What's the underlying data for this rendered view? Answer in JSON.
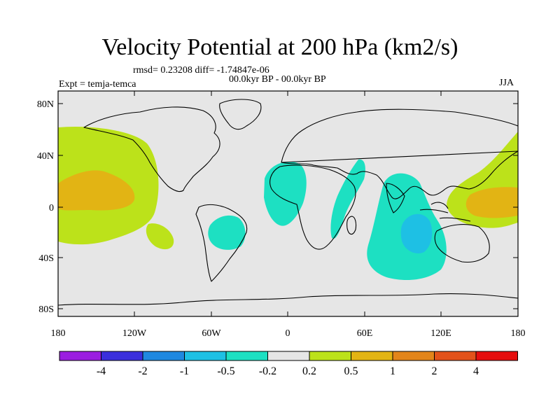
{
  "title": "Velocity Potential at 200 hPa (km2/s)",
  "stats": "rmsd= 0.23208 diff= -1.74847e-06",
  "period": "00.0kyr BP - 00.0kyr BP",
  "expt": "Expt = temja-temca",
  "season": "JJA",
  "axes": {
    "lat_ticks": [
      "80N",
      "40N",
      "0",
      "40S",
      "80S"
    ],
    "lon_ticks": [
      "180",
      "120W",
      "60W",
      "0",
      "60E",
      "120E",
      "180"
    ]
  },
  "colorbar": {
    "labels": [
      "-4",
      "-2",
      "-1",
      "-0.5",
      "-0.2",
      "0.2",
      "0.5",
      "1",
      "2",
      "4"
    ],
    "colors": [
      "#9b1de0",
      "#3a2fdc",
      "#1f88e0",
      "#1ec0e4",
      "#1de0c2",
      "#e6e6e6",
      "#bce21a",
      "#e2b414",
      "#e2851a",
      "#e2521a",
      "#e60e0e"
    ]
  },
  "map": {
    "background_color": "#e6e6e6",
    "coast_color": "#000000",
    "regions": [
      {
        "name": "central-pacific-positive",
        "level": "0.2 to 0.5",
        "color": "#bce21a"
      },
      {
        "name": "central-pacific-core",
        "level": "0.5 to 1",
        "color": "#e2b414"
      },
      {
        "name": "tropical-south-america-negative",
        "level": "-0.5 to -0.2",
        "color": "#1de0c2"
      },
      {
        "name": "west-africa-negative",
        "level": "-0.5 to -0.2",
        "color": "#1de0c2"
      },
      {
        "name": "east-africa-negative",
        "level": "-0.5 to -0.2",
        "color": "#1de0c2"
      },
      {
        "name": "indian-ocean-negative",
        "level": "-0.5 to -0.2",
        "color": "#1de0c2"
      },
      {
        "name": "indian-ocean-core",
        "level": "-1 to -0.5",
        "color": "#1ec0e4"
      },
      {
        "name": "west-pacific-positive",
        "level": "0.2 to 0.5",
        "color": "#bce21a"
      },
      {
        "name": "west-pacific-core",
        "level": "0.5 to 1",
        "color": "#e2b414"
      }
    ]
  }
}
